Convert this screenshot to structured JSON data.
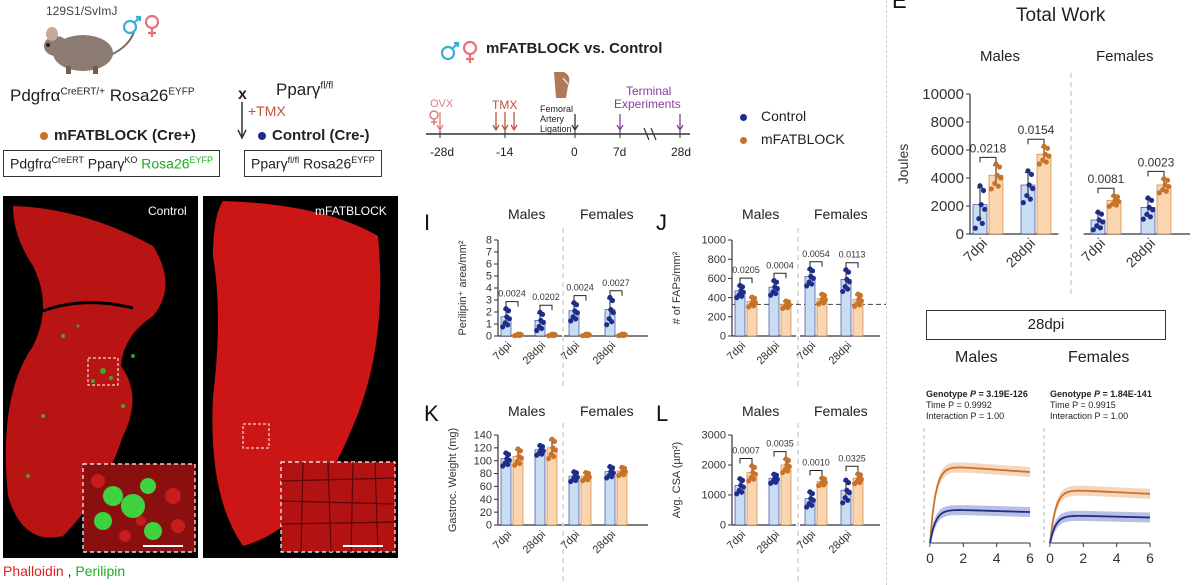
{
  "panelA": {
    "strain": "129S1/SvImJ",
    "cross_x": "x",
    "tmx": "+TMX",
    "parent1_base": "Pdgfrα",
    "parent1_sup": "CreERT/+",
    "parent1_rosa": "Rosa26",
    "parent1_rosa_sup": "EYFP",
    "parent2_base": "Pparγ",
    "parent2_sup": "fl/fl",
    "mfatblock_label": "mFATBLOCK (Cre+)",
    "control_label": "Control (Cre-)",
    "mf_geno_a": "Pdgfrα",
    "mf_geno_a_sup": "CreERT",
    "mf_geno_b": " Pparγ",
    "mf_geno_b_sup": "KO",
    "mf_geno_c": " Rosa26",
    "mf_geno_c_sup": "EYFP",
    "ctl_geno_a": "Pparγ",
    "ctl_geno_a_sup": "fl/fl",
    "ctl_geno_b": " Rosa26",
    "ctl_geno_b_sup": "EYFP"
  },
  "timeline": {
    "title": "mFATBLOCK vs. Control",
    "ovx": "OVX",
    "tmx": "TMX",
    "ligation": "Femoral\nArtery\nLigation",
    "lig1": "Femoral",
    "lig2": "Artery",
    "lig3": "Ligation",
    "terminal1": "Terminal",
    "terminal2": "Experiments",
    "ticks": [
      "-28d",
      "-14",
      "0",
      "7d",
      "28d"
    ],
    "legend_control": "Control",
    "legend_mfatblock": "mFATBLOCK"
  },
  "micro": {
    "left_label": "Control",
    "right_label": "mFATBLOCK",
    "stain1": "Phalloidin",
    "sep": ",",
    "stain2": "Perilipin"
  },
  "colors": {
    "control": "#1f2d8a",
    "mfatblock": "#c8732a",
    "control_bar": "#c9ddf2",
    "mfatblock_bar": "#fad6b0",
    "male": "#3aaed8",
    "female": "#e8707a",
    "perilipin": "#22aa22",
    "phalloidin": "#dd2222",
    "tmx_red": "#c0533a",
    "ovx_pink": "#e07a7a",
    "purple": "#8a3d9e"
  },
  "panels": {
    "E": {
      "letter": "E",
      "title": "Total Work",
      "ylabel": "Joules",
      "males": "Males",
      "females": "Females",
      "yticks": [
        "0",
        "2000",
        "4000",
        "6000",
        "8000",
        "10000"
      ],
      "ymax": 10000,
      "xlabels": [
        "7dpi",
        "28dpi",
        "7dpi",
        "28dpi"
      ],
      "pvals": [
        "0.0218",
        "0.0154",
        "0.0081",
        "0.0023"
      ],
      "means": [
        [
          2100,
          4200
        ],
        [
          3500,
          5700
        ],
        [
          1000,
          2400
        ],
        [
          1900,
          3500
        ]
      ],
      "errs": [
        [
          1200,
          700
        ],
        [
          900,
          500
        ],
        [
          500,
          300
        ],
        [
          600,
          400
        ]
      ]
    },
    "I": {
      "letter": "I",
      "ylabel": "Perilipin⁺ area/mm²",
      "males": "Males",
      "females": "Females",
      "yticks": [
        "0",
        "1",
        "2",
        "3",
        "4",
        "5",
        "6",
        "7",
        "8"
      ],
      "ymax": 8,
      "xlabels": [
        "7dpi",
        "28dpi",
        "7dpi",
        "28dpi"
      ],
      "pvals": [
        "0.0024",
        "0.0202",
        "0.0024",
        "0.0027"
      ],
      "means": [
        [
          1.6,
          0.1
        ],
        [
          1.3,
          0.1
        ],
        [
          2.1,
          0.1
        ],
        [
          2.2,
          0.1
        ]
      ],
      "errs": [
        [
          0.6,
          0.05
        ],
        [
          0.6,
          0.05
        ],
        [
          0.6,
          0.05
        ],
        [
          0.9,
          0.05
        ]
      ]
    },
    "J": {
      "letter": "J",
      "ylabel": "# of FAPs/mm²",
      "males": "Males",
      "females": "Females",
      "yticks": [
        "0",
        "200",
        "400",
        "600",
        "800",
        "1000"
      ],
      "ymax": 1000,
      "xlabels": [
        "7dpi",
        "28dpi",
        "7dpi",
        "28dpi"
      ],
      "pvals": [
        "0.0205",
        "0.0004",
        "0.0054",
        "0.0113"
      ],
      "means": [
        [
          470,
          360
        ],
        [
          510,
          330
        ],
        [
          620,
          390
        ],
        [
          590,
          380
        ]
      ],
      "errs": [
        [
          50,
          40
        ],
        [
          60,
          30
        ],
        [
          70,
          40
        ],
        [
          90,
          50
        ]
      ],
      "dashed": 330
    },
    "K": {
      "letter": "K",
      "ylabel": "Gastroc. Weight (mg)",
      "males": "Males",
      "females": "Females",
      "yticks": [
        "0",
        "20",
        "40",
        "60",
        "80",
        "100",
        "120",
        "140"
      ],
      "ymax": 140,
      "xlabels": [
        "7dpi",
        "28dpi",
        "7dpi",
        "28dpi"
      ],
      "pvals": [],
      "means": [
        [
          103,
          107
        ],
        [
          117,
          120
        ],
        [
          76,
          76
        ],
        [
          83,
          84
        ]
      ],
      "errs": [
        [
          8,
          10
        ],
        [
          6,
          12
        ],
        [
          6,
          5
        ],
        [
          7,
          5
        ]
      ]
    },
    "L": {
      "letter": "L",
      "ylabel": "Avg. CSA (µm²)",
      "males": "Males",
      "females": "Females",
      "yticks": [
        "0",
        "1000",
        "2000",
        "3000"
      ],
      "ymax": 3000,
      "xlabels": [
        "7dpi",
        "28dpi",
        "7dpi",
        "28dpi"
      ],
      "pvals": [
        "0.0007",
        "0.0035",
        "0.0010",
        "0.0325"
      ],
      "means": [
        [
          1320,
          1750
        ],
        [
          1560,
          2000
        ],
        [
          880,
          1450
        ],
        [
          1160,
          1560
        ]
      ],
      "errs": [
        [
          200,
          200
        ],
        [
          120,
          180
        ],
        [
          200,
          100
        ],
        [
          300,
          130
        ]
      ]
    }
  },
  "curves": {
    "box": "28dpi",
    "males": "Males",
    "females": "Females",
    "xticks": [
      "0",
      "2",
      "4",
      "6"
    ],
    "male_stats": {
      "genotype_label": "Genotype ",
      "p_label": "P",
      "genotype_p": " = 3.19E-126",
      "time": "Time P = 0.9992",
      "interaction": "Interaction P = 1.00"
    },
    "female_stats": {
      "genotype_label": "Genotype ",
      "p_label": "P",
      "genotype_p": " = 1.84E-141",
      "time": "Time P = 0.9915",
      "interaction": "Interaction P = 1.00"
    }
  }
}
